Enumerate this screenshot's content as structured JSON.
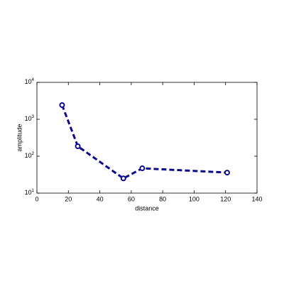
{
  "chart_data": {
    "type": "line",
    "xlabel": "distance",
    "ylabel": "amplitude",
    "x": [
      16,
      26,
      55,
      67,
      121
    ],
    "series": [
      {
        "color": "#0a0a8a",
        "values": [
          2430,
          186,
          25,
          47,
          36
        ]
      }
    ],
    "xlim": [
      0,
      140
    ],
    "xticks": [
      0,
      20,
      40,
      60,
      80,
      100,
      120,
      140
    ],
    "ylim": [
      10,
      10000
    ],
    "ylog": true,
    "yticks": [
      {
        "value": 10,
        "label": "10^1"
      },
      {
        "value": 100,
        "label": "10^2"
      },
      {
        "value": 1000,
        "label": "10^3"
      },
      {
        "value": 10000,
        "label": "10^4"
      }
    ]
  }
}
